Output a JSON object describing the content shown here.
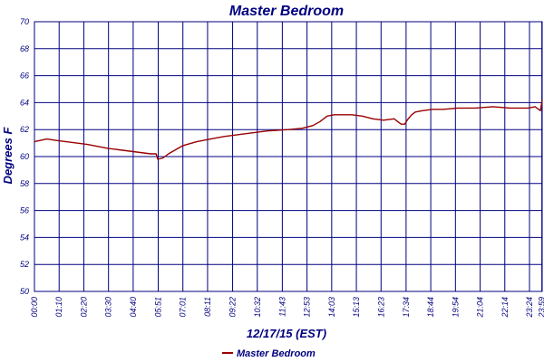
{
  "chart_data": {
    "type": "line",
    "title": "Master Bedroom",
    "xlabel": "12/17/15 (EST)",
    "ylabel": "Degrees F",
    "ylim": [
      50,
      70
    ],
    "yticks": [
      "50",
      "52",
      "54",
      "56",
      "58",
      "60",
      "62",
      "64",
      "66",
      "68",
      "70"
    ],
    "xticks": [
      "00:00",
      "01:10",
      "02:20",
      "03:30",
      "04:40",
      "05:51",
      "07:01",
      "08:11",
      "09:22",
      "10:32",
      "11:43",
      "12:53",
      "14:03",
      "15:13",
      "16:23",
      "17:34",
      "18:44",
      "19:54",
      "21:04",
      "22:14",
      "23:24",
      "23:59"
    ],
    "grid": true,
    "legend_position": "bottom-center",
    "colors": {
      "series": "#990000",
      "grid": "#000080",
      "text": "#000080"
    },
    "series": [
      {
        "name": "Master Bedroom",
        "x_minutes": [
          0,
          35,
          60,
          120,
          150,
          210,
          240,
          300,
          330,
          345,
          350,
          365,
          380,
          400,
          420,
          460,
          500,
          540,
          600,
          660,
          720,
          760,
          790,
          810,
          830,
          850,
          870,
          900,
          930,
          960,
          990,
          1020,
          1030,
          1040,
          1050,
          1060,
          1070,
          1080,
          1100,
          1130,
          1160,
          1200,
          1250,
          1300,
          1350,
          1400,
          1420,
          1435,
          1440
        ],
        "values": [
          61.1,
          61.3,
          61.2,
          61.0,
          60.9,
          60.6,
          60.5,
          60.3,
          60.2,
          60.2,
          59.8,
          59.9,
          60.2,
          60.5,
          60.8,
          61.1,
          61.3,
          61.5,
          61.7,
          61.9,
          62.0,
          62.1,
          62.3,
          62.6,
          63.0,
          63.1,
          63.1,
          63.1,
          63.0,
          62.8,
          62.7,
          62.8,
          62.6,
          62.4,
          62.4,
          62.8,
          63.1,
          63.3,
          63.4,
          63.5,
          63.5,
          63.6,
          63.6,
          63.7,
          63.6,
          63.6,
          63.7,
          63.4,
          64.2
        ]
      }
    ]
  }
}
